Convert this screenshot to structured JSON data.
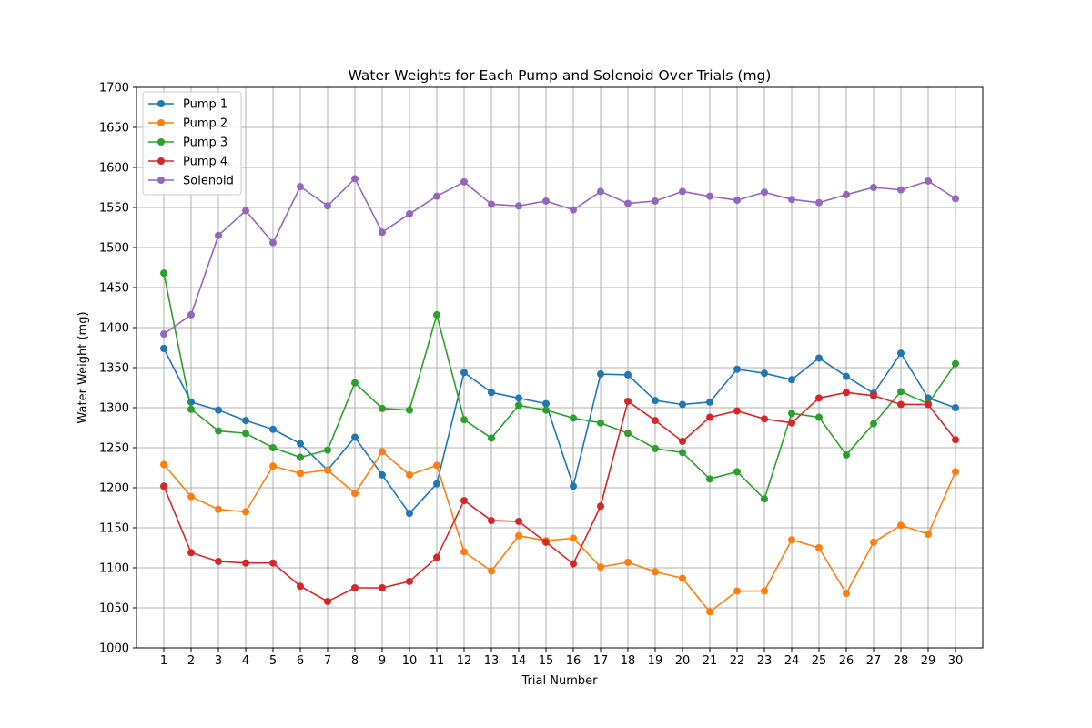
{
  "chart_data": {
    "type": "line",
    "title": "Water Weights for Each Pump and Solenoid Over Trials (mg)",
    "xlabel": "Trial Number",
    "ylabel": "Water Weight (mg)",
    "x": [
      1,
      2,
      3,
      4,
      5,
      6,
      7,
      8,
      9,
      10,
      11,
      12,
      13,
      14,
      15,
      16,
      17,
      18,
      19,
      20,
      21,
      22,
      23,
      24,
      25,
      26,
      27,
      28,
      29,
      30
    ],
    "xlim": [
      0,
      31
    ],
    "ylim": [
      1000,
      1700
    ],
    "yticks": [
      1000,
      1050,
      1100,
      1150,
      1200,
      1250,
      1300,
      1350,
      1400,
      1450,
      1500,
      1550,
      1600,
      1650,
      1700
    ],
    "grid": true,
    "legend_position": "top-left",
    "series": [
      {
        "name": "Pump 1",
        "color": "#1f77b4",
        "values": [
          1374,
          1307,
          1297,
          1284,
          1273,
          1255,
          1222,
          1263,
          1216,
          1168,
          1205,
          1344,
          1319,
          1312,
          1305,
          1202,
          1342,
          1341,
          1309,
          1304,
          1307,
          1348,
          1343,
          1335,
          1362,
          1339,
          1318,
          1368,
          1312,
          1300
        ]
      },
      {
        "name": "Pump 2",
        "color": "#ff7f0e",
        "values": [
          1229,
          1189,
          1173,
          1170,
          1227,
          1218,
          1222,
          1193,
          1245,
          1216,
          1228,
          1120,
          1096,
          1140,
          1134,
          1137,
          1101,
          1107,
          1095,
          1087,
          1045,
          1071,
          1071,
          1135,
          1125,
          1068,
          1132,
          1153,
          1142,
          1220
        ]
      },
      {
        "name": "Pump 3",
        "color": "#2ca02c",
        "values": [
          1468,
          1298,
          1271,
          1268,
          1250,
          1238,
          1247,
          1331,
          1299,
          1297,
          1416,
          1285,
          1262,
          1303,
          1297,
          1287,
          1281,
          1268,
          1249,
          1244,
          1211,
          1220,
          1186,
          1293,
          1288,
          1241,
          1280,
          1320,
          1305,
          1355
        ]
      },
      {
        "name": "Pump 4",
        "color": "#d62728",
        "values": [
          1202,
          1119,
          1108,
          1106,
          1106,
          1077,
          1058,
          1075,
          1075,
          1083,
          1113,
          1184,
          1159,
          1158,
          1132,
          1105,
          1177,
          1308,
          1284,
          1258,
          1288,
          1296,
          1286,
          1281,
          1312,
          1319,
          1315,
          1304,
          1304,
          1260
        ]
      },
      {
        "name": "Solenoid",
        "color": "#9467bd",
        "values": [
          1392,
          1416,
          1515,
          1546,
          1506,
          1576,
          1552,
          1586,
          1519,
          1542,
          1564,
          1582,
          1554,
          1552,
          1558,
          1547,
          1570,
          1555,
          1558,
          1570,
          1564,
          1559,
          1569,
          1560,
          1556,
          1566,
          1575,
          1572,
          1583,
          1561
        ]
      }
    ]
  }
}
